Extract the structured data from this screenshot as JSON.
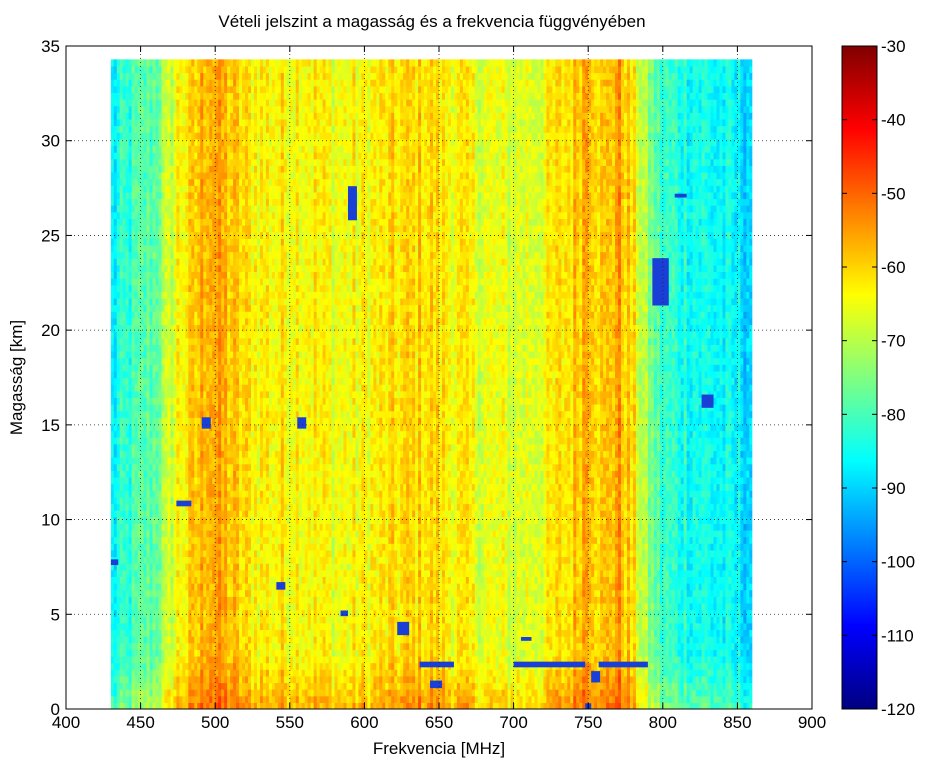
{
  "chart_data": {
    "type": "heatmap",
    "title": "Vételi jelszint a magasság és a frekvencia függvényében",
    "xlabel": "Frekvencia [MHz]",
    "ylabel": "Magasság [km]",
    "xlim": [
      400,
      900
    ],
    "ylim": [
      0,
      35
    ],
    "x_ticks": [
      400,
      450,
      500,
      550,
      600,
      650,
      700,
      750,
      800,
      850,
      900
    ],
    "y_ticks": [
      0,
      5,
      10,
      15,
      20,
      25,
      30,
      35
    ],
    "grid": true,
    "data_extent": {
      "x": [
        430,
        860
      ],
      "y": [
        0,
        34.3
      ]
    },
    "colormap": "jet",
    "colorbar": {
      "range": [
        -120,
        -30
      ],
      "ticks": [
        -30,
        -40,
        -50,
        -60,
        -70,
        -80,
        -90,
        -100,
        -110,
        -120
      ]
    },
    "level_profile": {
      "x": [
        430,
        440,
        460,
        475,
        485,
        495,
        505,
        520,
        540,
        560,
        580,
        600,
        620,
        640,
        660,
        680,
        700,
        720,
        740,
        750,
        760,
        770,
        780,
        790,
        800,
        830,
        860
      ],
      "dBm": [
        -88,
        -83,
        -77,
        -64,
        -61,
        -55,
        -57,
        -62,
        -63,
        -62,
        -65,
        -64,
        -62,
        -60,
        -63,
        -66,
        -67,
        -65,
        -60,
        -54,
        -61,
        -55,
        -62,
        -74,
        -82,
        -85,
        -89
      ]
    },
    "dropout_blocks": [
      {
        "x": [
          589,
          595
        ],
        "y": [
          25.8,
          27.6
        ]
      },
      {
        "x": [
          555,
          561
        ],
        "y": [
          14.8,
          15.4
        ]
      },
      {
        "x": [
          491,
          497
        ],
        "y": [
          14.8,
          15.4
        ]
      },
      {
        "x": [
          474,
          484
        ],
        "y": [
          10.7,
          11.0
        ]
      },
      {
        "x": [
          430,
          435
        ],
        "y": [
          7.6,
          7.9
        ]
      },
      {
        "x": [
          622,
          630
        ],
        "y": [
          3.9,
          4.6
        ]
      },
      {
        "x": [
          584,
          589
        ],
        "y": [
          4.9,
          5.2
        ]
      },
      {
        "x": [
          541,
          547
        ],
        "y": [
          6.3,
          6.7
        ]
      },
      {
        "x": [
          705,
          712
        ],
        "y": [
          3.6,
          3.8
        ]
      },
      {
        "x": [
          793,
          804
        ],
        "y": [
          21.3,
          23.8
        ]
      },
      {
        "x": [
          808,
          816
        ],
        "y": [
          27.0,
          27.2
        ]
      },
      {
        "x": [
          826,
          834
        ],
        "y": [
          15.9,
          16.6
        ]
      },
      {
        "x": [
          637,
          660
        ],
        "y": [
          2.2,
          2.5
        ]
      },
      {
        "x": [
          700,
          748
        ],
        "y": [
          2.2,
          2.5
        ]
      },
      {
        "x": [
          757,
          790
        ],
        "y": [
          2.2,
          2.5
        ]
      },
      {
        "x": [
          644,
          652
        ],
        "y": [
          1.1,
          1.5
        ]
      },
      {
        "x": [
          752,
          758
        ],
        "y": [
          1.4,
          2.0
        ]
      },
      {
        "x": [
          748,
          752
        ],
        "y": [
          0.0,
          0.3
        ]
      }
    ]
  }
}
